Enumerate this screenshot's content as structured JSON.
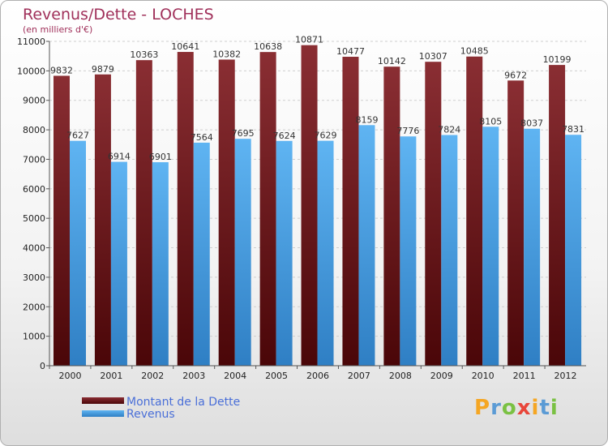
{
  "chart_data": {
    "type": "bar",
    "title": "Revenus/Dette - LOCHES",
    "subtitle": "(en milliers d'€)",
    "categories": [
      "2000",
      "2001",
      "2002",
      "2003",
      "2004",
      "2005",
      "2006",
      "2007",
      "2008",
      "2009",
      "2010",
      "2011",
      "2012"
    ],
    "series": [
      {
        "name": "Montant de la Dette",
        "color": "#7a1f24",
        "values": [
          9832,
          9879,
          10363,
          10641,
          10382,
          10638,
          10871,
          10477,
          10142,
          10307,
          10485,
          9672,
          10199
        ]
      },
      {
        "name": "Revenus",
        "color": "#4aa3e8",
        "values": [
          7627,
          6914,
          6901,
          7564,
          7695,
          7624,
          7629,
          8159,
          7776,
          7824,
          8105,
          8037,
          7831
        ]
      }
    ],
    "ylim": [
      0,
      11000
    ],
    "yticks": [
      0,
      1000,
      2000,
      3000,
      4000,
      5000,
      6000,
      7000,
      8000,
      9000,
      10000,
      11000
    ],
    "grid": true,
    "legend": "bottom-left"
  },
  "branding": {
    "letters": [
      "P",
      "r",
      "o",
      "x",
      "i",
      "t",
      "i"
    ],
    "colors": [
      "#f5a623",
      "#5b9bd5",
      "#7ac143",
      "#e8463a",
      "#f5a623",
      "#5b9bd5",
      "#7ac143"
    ]
  }
}
